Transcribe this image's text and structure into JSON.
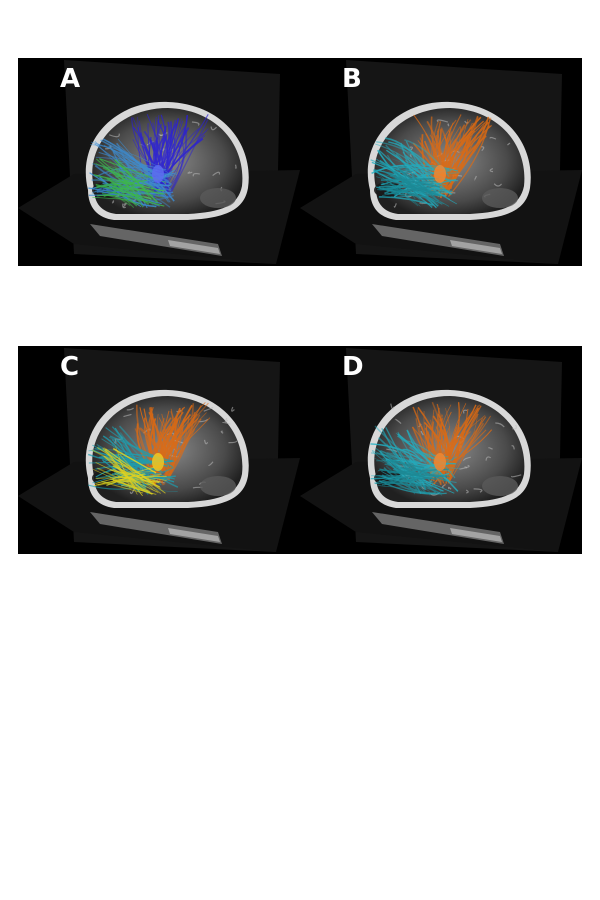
{
  "figure": {
    "panels": [
      {
        "label": "A",
        "tract_colors": [
          "#2a1fd6",
          "#3a8fd8",
          "#3cc24a"
        ],
        "highlight": "#5c6cff"
      },
      {
        "label": "B",
        "tract_colors": [
          "#e06a10",
          "#1fb1c4",
          "#18909e"
        ],
        "highlight": "#ff8a2a"
      },
      {
        "label": "C",
        "tract_colors": [
          "#e06a10",
          "#1aa2b4",
          "#f2e21a"
        ],
        "highlight": "#ffd21a"
      },
      {
        "label": "D",
        "tract_colors": [
          "#e06a10",
          "#1fb1c4",
          "#18909e"
        ],
        "highlight": "#ff8a2a"
      }
    ]
  }
}
